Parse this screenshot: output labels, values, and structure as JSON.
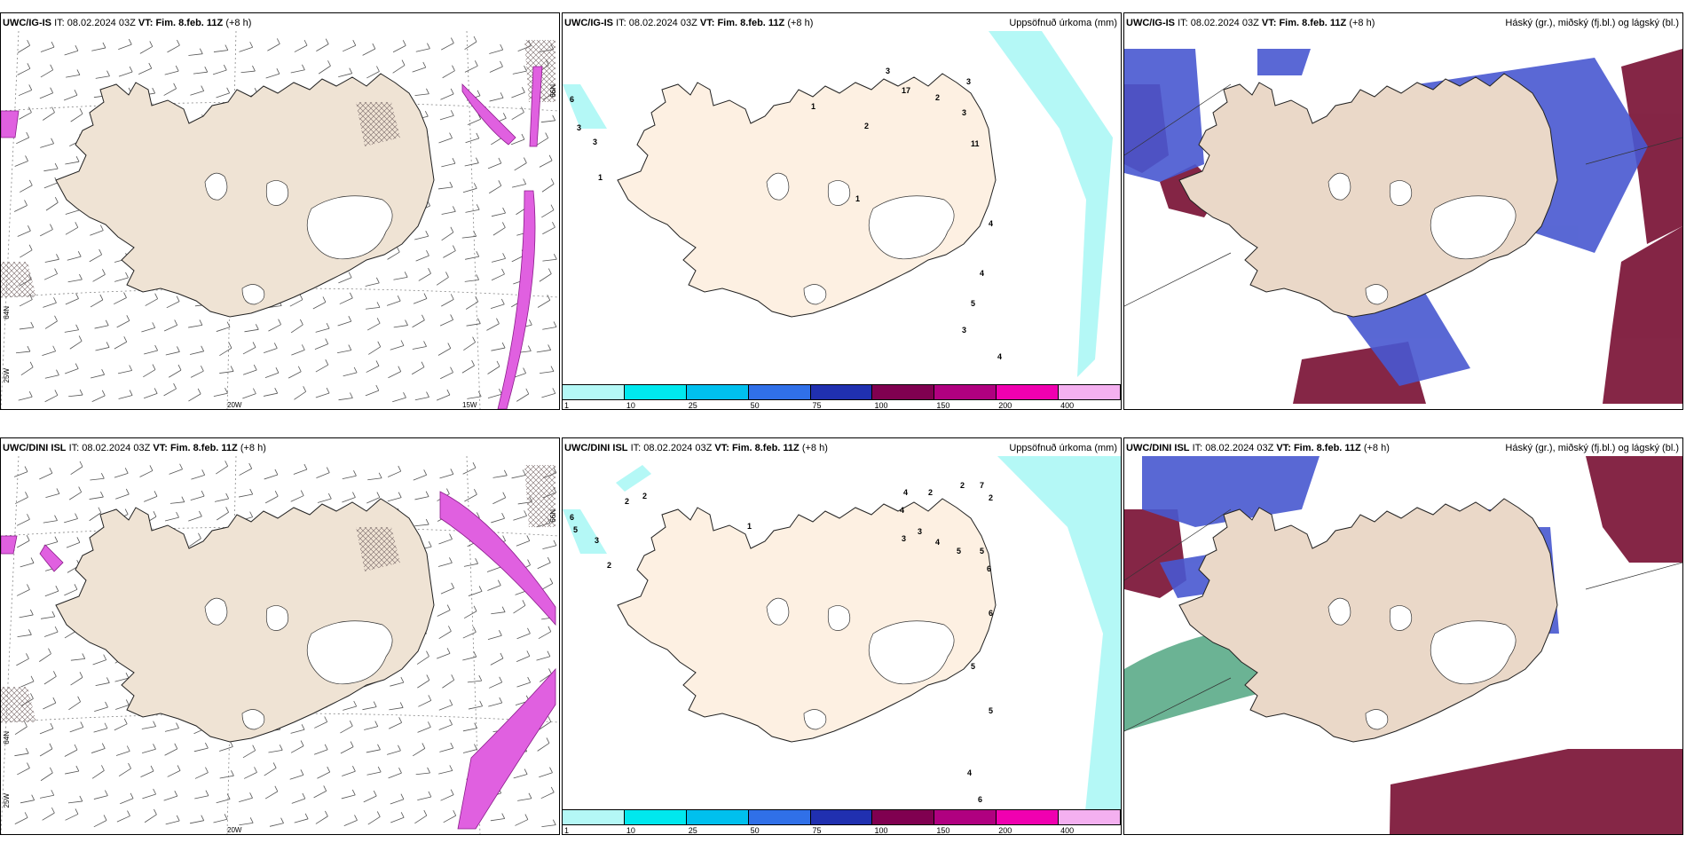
{
  "panels": [
    {
      "model": "UWC/IG-IS",
      "it_label": "IT:",
      "it_value": "08.02.2024 03Z",
      "vt_label": "VT:",
      "vt_value": "Fim. 8.feb. 11Z",
      "lead": "(+8 h)",
      "right_title": ""
    },
    {
      "model": "UWC/IG-IS",
      "it_label": "IT:",
      "it_value": "08.02.2024 03Z",
      "vt_label": "VT:",
      "vt_value": "Fim. 8.feb. 11Z",
      "lead": "(+8 h)",
      "right_title": "Uppsöfnuð úrkoma (mm)"
    },
    {
      "model": "UWC/IG-IS",
      "it_label": "IT:",
      "it_value": "08.02.2024 03Z",
      "vt_label": "VT:",
      "vt_value": "Fim. 8.feb. 11Z",
      "lead": "(+8 h)",
      "right_title": "Háský (gr.), miðský (fj.bl.) og lágský (bl.)"
    },
    {
      "model": "UWC/DINI ISL",
      "it_label": "IT:",
      "it_value": "08.02.2024 03Z",
      "vt_label": "VT:",
      "vt_value": "Fim. 8.feb. 11Z",
      "lead": "(+8 h)",
      "right_title": ""
    },
    {
      "model": "UWC/DINI ISL",
      "it_label": "IT:",
      "it_value": "08.02.2024 03Z",
      "vt_label": "VT:",
      "vt_value": "Fim. 8.feb. 11Z",
      "lead": "(+8 h)",
      "right_title": "Uppsöfnuð úrkoma (mm)"
    },
    {
      "model": "UWC/DINI ISL",
      "it_label": "IT:",
      "it_value": "08.02.2024 03Z",
      "vt_label": "VT:",
      "vt_value": "Fim. 8.feb. 11Z",
      "lead": "(+8 h)",
      "right_title": "Háský (gr.), miðský (fj.bl.) og lágský (bl.)"
    }
  ],
  "grid_labels": {
    "w25": "25W",
    "w20": "20W",
    "w15": "15W",
    "n64": "64N",
    "n66": "66N"
  },
  "colorbar": {
    "labels": [
      "1",
      "10",
      "25",
      "50",
      "75",
      "100",
      "150",
      "200",
      "400"
    ],
    "colors": [
      "#b4f8f6",
      "#00e8ee",
      "#00c0ee",
      "#3070e8",
      "#2030b0",
      "#800050",
      "#b00080",
      "#f000b0",
      "#f4b0f0"
    ]
  },
  "precip_labels_top": [
    "6",
    "3",
    "3",
    "1",
    "1",
    "2",
    "3",
    "17",
    "2",
    "3",
    "3",
    "11",
    "1",
    "4",
    "4",
    "5",
    "3",
    "4"
  ],
  "precip_labels_bottom": [
    "6",
    "5",
    "3",
    "2",
    "2",
    "2",
    "1",
    "4",
    "2",
    "2",
    "7",
    "2",
    "4",
    "3",
    "3",
    "4",
    "5",
    "5",
    "6",
    "6",
    "5",
    "5",
    "4",
    "6"
  ],
  "colors": {
    "land_wind": "#efe3d4",
    "land_precip": "#fdf0e2",
    "land_cloud": "#ead8c8",
    "ice": "#ffffff",
    "hatch": "#7a6a6a",
    "wind_precip": "#e060e0",
    "high_cloud": "#3a9a70",
    "mid_cloud": "#4858d0",
    "low_cloud": "#7e1a3c",
    "precip_light": "#b4f8f6"
  }
}
